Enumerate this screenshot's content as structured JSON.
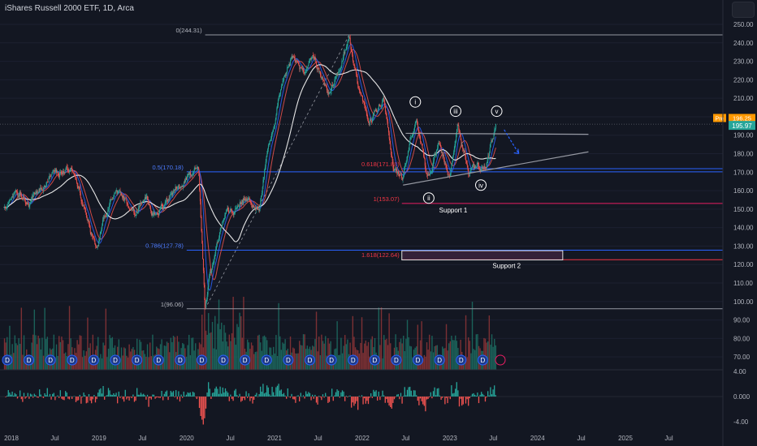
{
  "header": {
    "title": "iShares Russell 2000 ETF, 1D, Arca"
  },
  "colors": {
    "background": "#131722",
    "up": "#26a69a",
    "down": "#ef5350",
    "ma_slow": "#e6e6e6",
    "ma_fast_blue": "#2962ff",
    "ma_fast_red": "#ef5350",
    "fib_blue": "#2962ff",
    "fib_red": "#f23645",
    "grid_text": "#b2b5be",
    "pre_badge": "#ff9800",
    "price_badge": "#26a69a",
    "support2_box": "#5d2f54"
  },
  "chart_data": [
    {
      "type": "line",
      "title": "iShares Russell 2000 ETF, 1D, Arca",
      "y_axis_ticks": [
        "250.00",
        "240.00",
        "230.00",
        "220.00",
        "210.00",
        "200.00",
        "190.00",
        "180.00",
        "170.00",
        "160.00",
        "150.00",
        "140.00",
        "130.00",
        "120.00",
        "110.00",
        "100.00",
        "90.00",
        "80.00",
        "70.00"
      ],
      "x_axis_ticks": [
        "2018",
        "Jul",
        "2019",
        "Jul",
        "2020",
        "Jul",
        "2021",
        "Jul",
        "2022",
        "Jul",
        "2023",
        "Jul",
        "2024",
        "Jul",
        "2025",
        "Jul"
      ],
      "ylim": [
        68,
        253
      ],
      "price_path": [
        [
          "2017-12-01",
          150
        ],
        [
          "2018-01-20",
          160
        ],
        [
          "2018-03-15",
          153
        ],
        [
          "2018-05-01",
          160
        ],
        [
          "2018-06-15",
          167
        ],
        [
          "2018-08-31",
          173
        ],
        [
          "2018-10-01",
          165
        ],
        [
          "2018-11-01",
          150
        ],
        [
          "2018-12-24",
          127
        ],
        [
          "2019-01-20",
          145
        ],
        [
          "2019-03-01",
          157
        ],
        [
          "2019-04-15",
          157
        ],
        [
          "2019-05-30",
          147
        ],
        [
          "2019-07-15",
          157
        ],
        [
          "2019-08-15",
          146
        ],
        [
          "2019-09-30",
          153
        ],
        [
          "2019-12-31",
          167
        ],
        [
          "2020-01-20",
          169
        ],
        [
          "2020-02-20",
          170
        ],
        [
          "2020-03-18",
          96
        ],
        [
          "2020-04-01",
          110
        ],
        [
          "2020-05-01",
          128
        ],
        [
          "2020-06-10",
          150
        ],
        [
          "2020-07-15",
          148
        ],
        [
          "2020-09-01",
          156
        ],
        [
          "2020-10-30",
          150
        ],
        [
          "2020-11-30",
          180
        ],
        [
          "2020-12-31",
          197
        ],
        [
          "2021-01-25",
          215
        ],
        [
          "2021-03-15",
          233
        ],
        [
          "2021-05-01",
          225
        ],
        [
          "2021-06-15",
          231
        ],
        [
          "2021-08-15",
          213
        ],
        [
          "2021-10-01",
          225
        ],
        [
          "2021-11-08",
          244.31
        ],
        [
          "2021-12-15",
          215
        ],
        [
          "2022-01-30",
          197
        ],
        [
          "2022-03-30",
          210
        ],
        [
          "2022-05-10",
          172
        ],
        [
          "2022-06-16",
          166
        ],
        [
          "2022-08-15",
          201
        ],
        [
          "2022-09-30",
          166
        ],
        [
          "2022-11-15",
          185
        ],
        [
          "2022-12-31",
          168
        ],
        [
          "2023-02-02",
          194
        ],
        [
          "2023-03-20",
          170
        ],
        [
          "2023-05-01",
          173
        ],
        [
          "2023-06-01",
          175
        ],
        [
          "2023-06-30",
          189
        ],
        [
          "2023-07-14",
          195.97
        ]
      ],
      "last_price": "195.97",
      "pre_market": {
        "label": "Pre",
        "value": "196.25"
      },
      "fib_levels": [
        {
          "label": "0(244.31)",
          "value": 244.31
        },
        {
          "label": "0.5(170.18)",
          "value": 170.18
        },
        {
          "label": "0.786(127.78)",
          "value": 127.78
        },
        {
          "label": "1(96.06)",
          "value": 96.06
        }
      ],
      "fib_ext_levels": [
        {
          "label": "0.618(171.88)",
          "value": 171.88
        },
        {
          "label": "1(153.07)",
          "value": 153.07
        },
        {
          "label": "1.618(122.64)",
          "value": 122.64
        }
      ],
      "annotations": {
        "support_1": "Support 1",
        "support_2": "Support 2",
        "waves": [
          {
            "label": "i",
            "date": "2022-08-10",
            "value": 208
          },
          {
            "label": "ii",
            "date": "2022-10-05",
            "value": 156
          },
          {
            "label": "iii",
            "date": "2023-01-25",
            "value": 203
          },
          {
            "label": "iv",
            "date": "2023-05-10",
            "value": 163
          },
          {
            "label": "v",
            "date": "2023-07-15",
            "value": 203
          }
        ],
        "triangle_upper": [
          [
            "2022-07-01",
            191
          ],
          [
            "2024-07-31",
            190.5
          ]
        ],
        "triangle_lower": [
          [
            "2022-06-20",
            163
          ],
          [
            "2024-07-31",
            181
          ]
        ],
        "arrow": [
          [
            "2023-08-15",
            193
          ],
          [
            "2023-10-15",
            180
          ]
        ],
        "support_2_box": [
          [
            "2022-06-15",
            127.5
          ],
          [
            "2024-04-15",
            122.5
          ]
        ]
      }
    },
    {
      "type": "bar",
      "title": "Volume",
      "note": "volume histogram, unscaled"
    },
    {
      "type": "bar",
      "title": "Oscillator",
      "y_axis_ticks": [
        "4.00",
        "0.000",
        "-4.00"
      ],
      "ylim": [
        -4.8,
        4.8
      ]
    }
  ],
  "dividend_marker": "D"
}
